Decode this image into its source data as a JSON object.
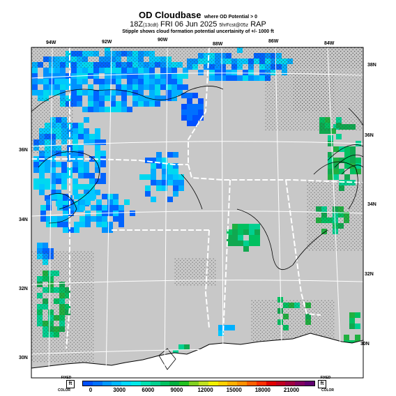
{
  "header": {
    "title": "OD Cloudbase",
    "title_note": "where OD Potential > 0",
    "valid_time": "18Z",
    "valid_time_local": "(13cdt)",
    "valid_date": "FRI 06 Jun 2025",
    "forecast_note": "5hrFcst@05z",
    "model": "RAP",
    "subtitle": "Stipple shows cloud formation potential uncertainity of +/- 1000 ft"
  },
  "map": {
    "longitude_labels": [
      "94W",
      "92W",
      "90W",
      "88W",
      "86W",
      "84W"
    ],
    "latitude_labels_left": [
      "36N",
      "34N",
      "32N",
      "30N"
    ],
    "latitude_labels_right": [
      "38N",
      "36N",
      "34N",
      "32N",
      "30N"
    ],
    "colors": {
      "land": "#c8c8c8",
      "water": "#ffffff",
      "grid": "#ffffff",
      "state_border": "#ffffff",
      "contour": "#000000"
    }
  },
  "colorbar": {
    "tick_labels": [
      "0",
      "3000",
      "6000",
      "9000",
      "12000",
      "15000",
      "18000",
      "21000"
    ],
    "colors": [
      "#0050ff",
      "#0070ff",
      "#0098ff",
      "#00b8ff",
      "#00d8ff",
      "#00e8e8",
      "#00e0b0",
      "#00d090",
      "#00c060",
      "#00b040",
      "#20c020",
      "#80d020",
      "#c0e020",
      "#f0f000",
      "#ffd000",
      "#ffb000",
      "#ff9000",
      "#ff6000",
      "#ff3000",
      "#e00000",
      "#c00020",
      "#a00040",
      "#800060",
      "#600070"
    ],
    "left_box": {
      "label": "ft",
      "caption_top": "FIXED",
      "caption_bottom": "COLOR"
    },
    "right_box": {
      "label": "ft",
      "caption_top": "FIXED",
      "caption_bottom": "COLOR"
    }
  }
}
